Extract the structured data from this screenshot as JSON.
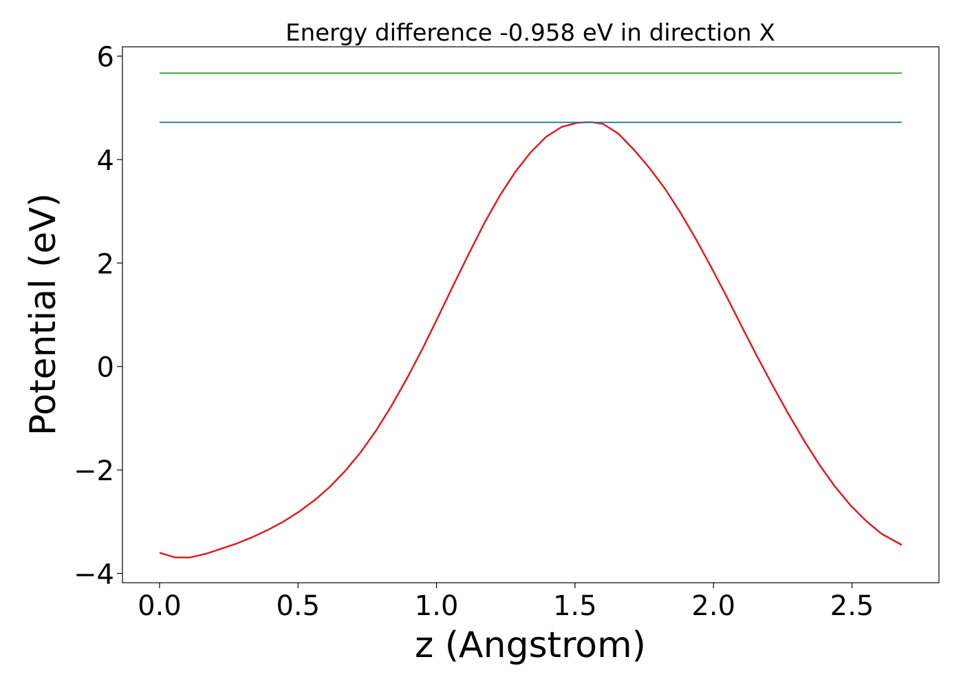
{
  "chart_data": {
    "type": "line",
    "title": "Energy difference -0.958 eV in direction X",
    "xlabel": "z (Angstrom)",
    "ylabel": "Potential (eV)",
    "xlim": [
      -0.134,
      2.814
    ],
    "ylim": [
      -4.18,
      6.18
    ],
    "xticks": [
      0.0,
      0.5,
      1.0,
      1.5,
      2.0,
      2.5
    ],
    "xtick_labels": [
      "0.0",
      "0.5",
      "1.0",
      "1.5",
      "2.0",
      "2.5"
    ],
    "yticks": [
      -4,
      -2,
      0,
      2,
      4,
      6
    ],
    "ytick_labels": [
      "−4",
      "−2",
      "0",
      "2",
      "4",
      "6"
    ],
    "grid": false,
    "legend": "none",
    "series": [
      {
        "color": "#e31a1c",
        "x": [
          0.0,
          0.0558,
          0.1117,
          0.1675,
          0.2233,
          0.2792,
          0.335,
          0.3908,
          0.4467,
          0.5025,
          0.5583,
          0.6142,
          0.67,
          0.7258,
          0.7817,
          0.8375,
          0.8933,
          0.9492,
          1.005,
          1.0608,
          1.1167,
          1.1725,
          1.2283,
          1.2842,
          1.34,
          1.3958,
          1.4517,
          1.5075,
          1.5392,
          1.5633,
          1.6008,
          1.6567,
          1.7125,
          1.7683,
          1.8242,
          1.88,
          1.9358,
          1.9917,
          2.0475,
          2.1033,
          2.1592,
          2.215,
          2.2708,
          2.3267,
          2.3825,
          2.4383,
          2.4942,
          2.55,
          2.6058,
          2.68
        ],
        "y": [
          -3.6,
          -3.69,
          -3.69,
          -3.62,
          -3.52,
          -3.42,
          -3.3,
          -3.16,
          -3.0,
          -2.81,
          -2.59,
          -2.33,
          -2.02,
          -1.66,
          -1.24,
          -0.76,
          -0.23,
          0.34,
          0.95,
          1.57,
          2.18,
          2.77,
          3.3,
          3.76,
          4.14,
          4.44,
          4.63,
          4.71,
          4.72,
          4.72,
          4.69,
          4.5,
          4.19,
          3.84,
          3.44,
          2.98,
          2.47,
          1.92,
          1.35,
          0.76,
          0.18,
          -0.38,
          -0.92,
          -1.43,
          -1.9,
          -2.32,
          -2.68,
          -2.98,
          -3.23,
          -3.45
        ]
      },
      {
        "color": "#1f77b4",
        "x": [
          0.0,
          2.68
        ],
        "y": [
          4.72,
          4.72
        ]
      },
      {
        "color": "#2ca02c",
        "x": [
          0.0,
          2.68
        ],
        "y": [
          5.67,
          5.67
        ]
      }
    ]
  }
}
